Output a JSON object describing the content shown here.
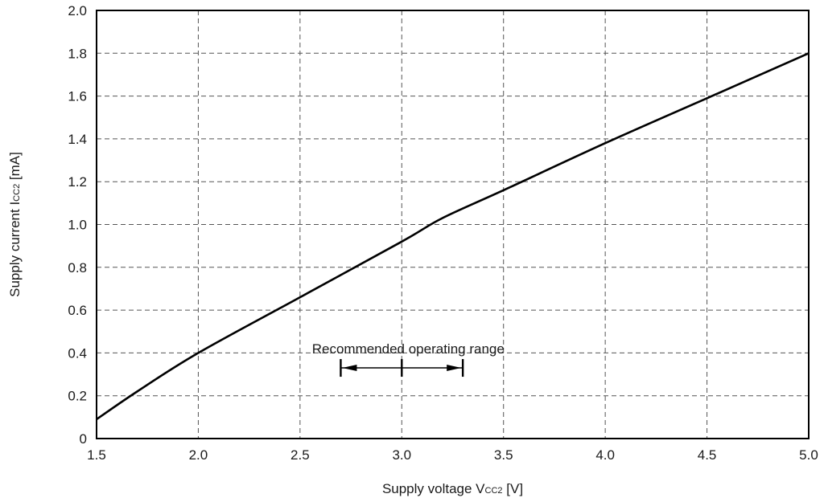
{
  "chart_data": {
    "type": "line",
    "xlabel": {
      "main": "Supply voltage  V",
      "sub": "CC2",
      "unit": " [V]"
    },
    "ylabel": {
      "main": "Supply current  I",
      "sub": "CC2",
      "unit": " [mA]"
    },
    "xlim": [
      1.5,
      5.0
    ],
    "ylim": [
      0,
      2.0
    ],
    "x_ticks": [
      1.5,
      2.0,
      2.5,
      3.0,
      3.5,
      4.0,
      4.5,
      5.0
    ],
    "x_tick_labels": [
      "1.5",
      "2.0",
      "2.5",
      "3.0",
      "3.5",
      "4.0",
      "4.5",
      "5.0"
    ],
    "y_ticks": [
      0,
      0.2,
      0.4,
      0.6,
      0.8,
      1.0,
      1.2,
      1.4,
      1.6,
      1.8,
      2.0
    ],
    "y_tick_labels": [
      "0",
      "0.2",
      "0.4",
      "0.6",
      "0.8",
      "1.0",
      "1.2",
      "1.4",
      "1.6",
      "1.8",
      "2.0"
    ],
    "grid": true,
    "grid_style": "dashed",
    "series": [
      {
        "x": [
          1.5,
          1.7,
          2.0,
          2.5,
          3.0,
          3.2,
          3.5,
          4.0,
          4.5,
          5.0
        ],
        "y": [
          0.09,
          0.22,
          0.4,
          0.66,
          0.92,
          1.03,
          1.16,
          1.38,
          1.59,
          1.8
        ]
      }
    ],
    "annotation": {
      "text": "Recommended operating range",
      "x_start": 2.7,
      "x_mid": 3.0,
      "x_end": 3.3,
      "y": 0.33
    },
    "colors": {
      "line": "#000000",
      "grid": "#555555",
      "text": "#1a1a1a"
    }
  }
}
